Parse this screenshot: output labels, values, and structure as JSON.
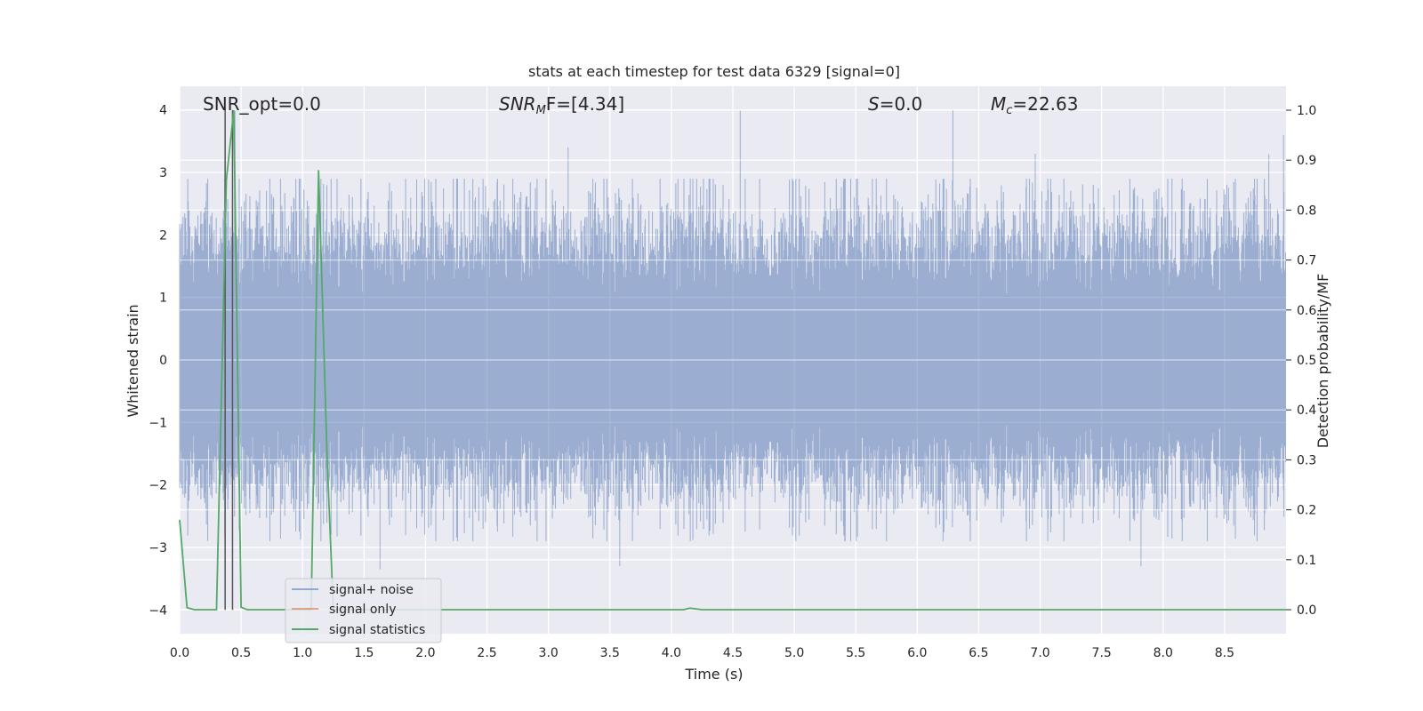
{
  "chart_data": {
    "type": "line",
    "title": "stats at each timestep for test data 6329 [signal=0]",
    "xlabel": "Time (s)",
    "ylabel_left": "Whitened strain",
    "ylabel_right": "Detection probability/MF",
    "xlim": [
      0.0,
      9.0
    ],
    "ylim_left": [
      -4.38,
      4.38
    ],
    "ylim_right": [
      -0.048,
      1.048
    ],
    "x_ticks": [
      "0.0",
      "0.5",
      "1.0",
      "1.5",
      "2.0",
      "2.5",
      "3.0",
      "3.5",
      "4.0",
      "4.5",
      "5.0",
      "5.5",
      "6.0",
      "6.5",
      "7.0",
      "7.5",
      "8.0",
      "8.5"
    ],
    "y_ticks_left": [
      "−4",
      "−3",
      "−2",
      "−1",
      "0",
      "1",
      "2",
      "3",
      "4"
    ],
    "y_ticks_right": [
      "0.0",
      "0.1",
      "0.2",
      "0.3",
      "0.4",
      "0.5",
      "0.6",
      "0.7",
      "0.8",
      "0.9",
      "1.0"
    ],
    "grid": true,
    "legend_position": "lower-left",
    "annotations": [
      {
        "label": "SNR_opt=0.0"
      },
      {
        "math": "SNR",
        "sub": "M",
        "suffix": "F=[4.34]"
      },
      {
        "math": "S",
        "sub": "",
        "suffix": "=0.0"
      },
      {
        "math": "M",
        "sub": "c",
        "suffix": "=22.63"
      }
    ],
    "series": [
      {
        "name": "signal+ noise",
        "color": "#4c72b0",
        "axis": "left",
        "description": "whitened strain noise, roughly gaussian with sigma ~0.8",
        "peaks": [
          [
            0.45,
            4.0
          ],
          [
            4.56,
            3.99
          ],
          [
            6.29,
            4.0
          ],
          [
            8.98,
            3.6
          ],
          [
            3.16,
            3.4
          ],
          [
            6.96,
            3.3
          ],
          [
            8.86,
            3.29
          ],
          [
            1.63,
            -3.35
          ],
          [
            3.58,
            -3.3
          ],
          [
            7.82,
            -3.3
          ]
        ]
      },
      {
        "name": "signal only",
        "color": "#dd8452",
        "axis": "left",
        "values_note": "zero"
      },
      {
        "name": "signal statistics",
        "color": "#55a868",
        "axis": "right",
        "x": [
          0.0,
          0.06,
          0.12,
          0.3,
          0.38,
          0.44,
          0.5,
          0.55,
          1.0,
          1.07,
          1.13,
          1.2,
          1.25,
          1.3,
          4.0,
          4.1,
          4.15,
          4.25,
          9.0
        ],
        "y": [
          0.18,
          0.004,
          0.0,
          0.0,
          0.86,
          1.0,
          0.005,
          0.0,
          0.0,
          0.0,
          0.88,
          0.3,
          0.0,
          0.0,
          0.0,
          0.0,
          0.003,
          0.0,
          0.0
        ]
      }
    ],
    "vertical_lines": [
      0.37,
      0.43
    ]
  }
}
